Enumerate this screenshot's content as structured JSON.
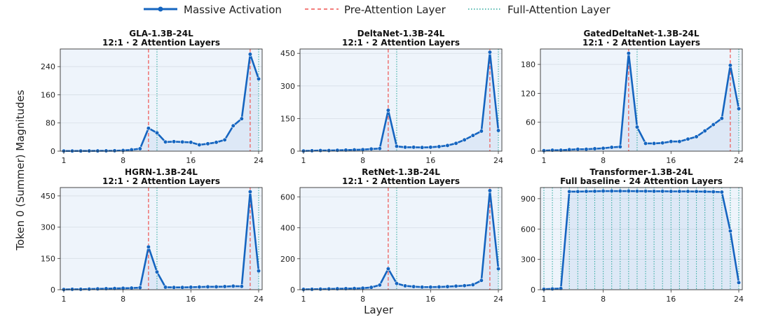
{
  "figure": {
    "legend": {
      "massive_activation": "Massive Activation",
      "pre_attention": "Pre-Attention Layer",
      "full_attention": "Full-Attention Layer"
    },
    "ylabel": "Token 0 (Summer) Magnitudes",
    "xlabel": "Layer",
    "colors": {
      "line": "#1565c0",
      "pre_attention": "#ef5350",
      "full_attention": "#26a69a",
      "fill": "#1565c0",
      "panel_bg": "#eef4fb"
    }
  },
  "chart_data": [
    {
      "type": "line",
      "title": "GLA-1.3B-24L",
      "subtitle": "12:1 · 2 Attention Layers",
      "x": [
        1,
        2,
        3,
        4,
        5,
        6,
        7,
        8,
        9,
        10,
        11,
        12,
        13,
        14,
        15,
        16,
        17,
        18,
        19,
        20,
        21,
        22,
        23,
        24
      ],
      "series": [
        {
          "name": "Massive Activation",
          "values": [
            0.5,
            0.5,
            0.6,
            0.7,
            0.8,
            1,
            1.2,
            2,
            4,
            7,
            65,
            52,
            26,
            27,
            26,
            25,
            18,
            21,
            25,
            32,
            72,
            92,
            275,
            205
          ]
        }
      ],
      "pre_attention_layers": [
        11,
        23
      ],
      "full_attention_layers": [
        12,
        24
      ],
      "ylim": [
        0,
        290
      ],
      "yticks": [
        0,
        80,
        160,
        240
      ],
      "xticks": [
        1,
        8,
        16,
        24
      ]
    },
    {
      "type": "line",
      "title": "DeltaNet-1.3B-24L",
      "subtitle": "12:1 · 2 Attention Layers",
      "x": [
        1,
        2,
        3,
        4,
        5,
        6,
        7,
        8,
        9,
        10,
        11,
        12,
        13,
        14,
        15,
        16,
        17,
        18,
        19,
        20,
        21,
        22,
        23,
        24
      ],
      "series": [
        {
          "name": "Massive Activation",
          "values": [
            1,
            2,
            3,
            3,
            4,
            5,
            6,
            7,
            10,
            12,
            188,
            22,
            18,
            18,
            17,
            18,
            21,
            26,
            36,
            52,
            72,
            92,
            455,
            95
          ]
        }
      ],
      "pre_attention_layers": [
        11,
        23
      ],
      "full_attention_layers": [
        12,
        24
      ],
      "ylim": [
        0,
        470
      ],
      "yticks": [
        0,
        150,
        300,
        450
      ],
      "xticks": [
        1,
        8,
        16,
        24
      ]
    },
    {
      "type": "line",
      "title": "GatedDeltaNet-1.3B-24L",
      "subtitle": "12:1 · 2 Attention Layers",
      "x": [
        1,
        2,
        3,
        4,
        5,
        6,
        7,
        8,
        9,
        10,
        11,
        12,
        13,
        14,
        15,
        16,
        17,
        18,
        19,
        20,
        21,
        22,
        23,
        24
      ],
      "series": [
        {
          "name": "Massive Activation",
          "values": [
            1,
            2,
            2,
            3,
            4,
            4,
            5,
            6,
            8,
            9,
            203,
            50,
            16,
            16,
            17,
            20,
            20,
            25,
            30,
            42,
            55,
            68,
            178,
            88
          ]
        }
      ],
      "pre_attention_layers": [
        11,
        23
      ],
      "full_attention_layers": [
        12,
        24
      ],
      "ylim": [
        0,
        212
      ],
      "yticks": [
        0,
        60,
        120,
        180
      ],
      "xticks": [
        1,
        8,
        16,
        24
      ]
    },
    {
      "type": "line",
      "title": "HGRN-1.3B-24L",
      "subtitle": "12:1 · 2 Attention Layers",
      "x": [
        1,
        2,
        3,
        4,
        5,
        6,
        7,
        8,
        9,
        10,
        11,
        12,
        13,
        14,
        15,
        16,
        17,
        18,
        19,
        20,
        21,
        22,
        23,
        24
      ],
      "series": [
        {
          "name": "Massive Activation",
          "values": [
            1,
            2,
            2,
            3,
            4,
            5,
            6,
            7,
            8,
            10,
            205,
            85,
            12,
            11,
            11,
            12,
            13,
            14,
            14,
            15,
            17,
            16,
            470,
            90
          ]
        }
      ],
      "pre_attention_layers": [
        11,
        23
      ],
      "full_attention_layers": [
        12,
        24
      ],
      "ylim": [
        0,
        490
      ],
      "yticks": [
        0,
        150,
        300,
        450
      ],
      "xticks": [
        1,
        8,
        16,
        24
      ]
    },
    {
      "type": "line",
      "title": "RetNet-1.3B-24L",
      "subtitle": "12:1 · 2 Attention Layers",
      "x": [
        1,
        2,
        3,
        4,
        5,
        6,
        7,
        8,
        9,
        10,
        11,
        12,
        13,
        14,
        15,
        16,
        17,
        18,
        19,
        20,
        21,
        22,
        23,
        24
      ],
      "series": [
        {
          "name": "Massive Activation",
          "values": [
            2,
            3,
            4,
            5,
            6,
            7,
            8,
            10,
            15,
            30,
            135,
            40,
            25,
            20,
            17,
            17,
            18,
            20,
            23,
            26,
            32,
            60,
            640,
            135
          ]
        }
      ],
      "pre_attention_layers": [
        11,
        23
      ],
      "full_attention_layers": [
        12,
        24
      ],
      "ylim": [
        0,
        660
      ],
      "yticks": [
        0,
        200,
        400,
        600
      ],
      "xticks": [
        1,
        8,
        16,
        24
      ]
    },
    {
      "type": "line",
      "title": "Transformer-1.3B-24L",
      "subtitle": "Full baseline · 24 Attention Layers",
      "x": [
        1,
        2,
        3,
        4,
        5,
        6,
        7,
        8,
        9,
        10,
        11,
        12,
        13,
        14,
        15,
        16,
        17,
        18,
        19,
        20,
        21,
        22,
        23,
        24
      ],
      "series": [
        {
          "name": "Massive Activation",
          "values": [
            5,
            8,
            12,
            970,
            970,
            972,
            973,
            975,
            975,
            975,
            975,
            974,
            974,
            973,
            973,
            972,
            972,
            972,
            971,
            970,
            968,
            965,
            580,
            70
          ]
        }
      ],
      "pre_attention_layers": [],
      "full_attention_layers": [
        1,
        2,
        3,
        4,
        5,
        6,
        7,
        8,
        9,
        10,
        11,
        12,
        13,
        14,
        15,
        16,
        17,
        18,
        19,
        20,
        21,
        22,
        23,
        24
      ],
      "ylim": [
        0,
        1010
      ],
      "yticks": [
        0,
        300,
        600,
        900
      ],
      "xticks": [
        1,
        8,
        16,
        24
      ]
    }
  ]
}
